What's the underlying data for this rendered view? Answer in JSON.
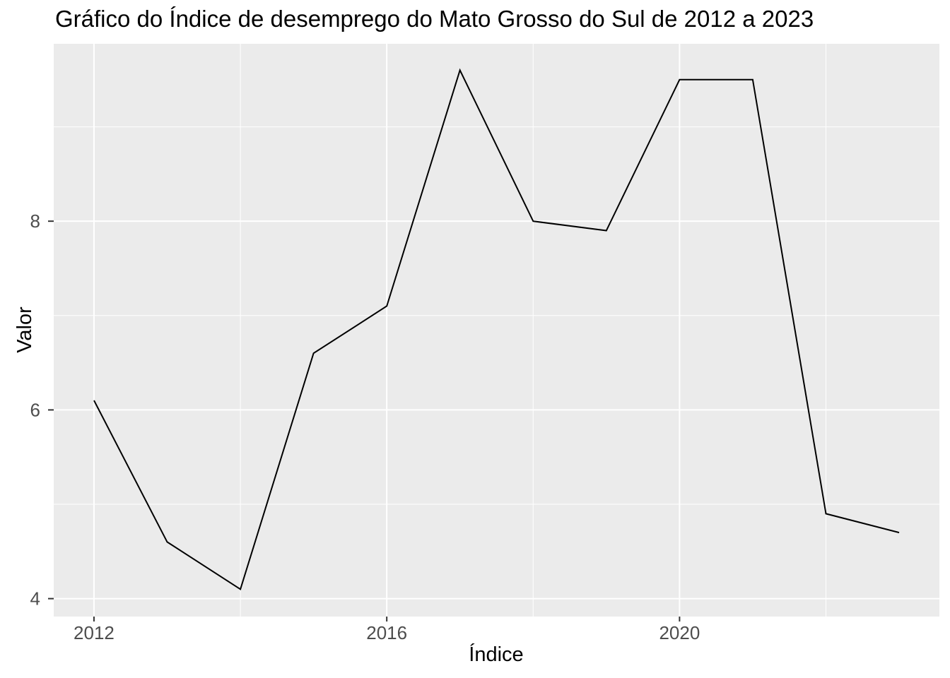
{
  "chart_data": {
    "type": "line",
    "title": "Gráfico do Índice de desemprego do Mato Grosso do Sul de 2012 a 2023",
    "xlabel": "Índice",
    "ylabel": "Valor",
    "x": [
      2012,
      2013,
      2014,
      2015,
      2016,
      2017,
      2018,
      2019,
      2020,
      2021,
      2022,
      2023
    ],
    "values": [
      6.1,
      4.6,
      4.1,
      6.6,
      7.1,
      9.6,
      8.0,
      7.9,
      9.5,
      9.5,
      4.9,
      4.7
    ],
    "x_ticks": [
      2012,
      2016,
      2020
    ],
    "y_ticks": [
      4,
      6,
      8
    ],
    "x_minor_gridlines": [
      2014,
      2018,
      2022
    ],
    "y_minor_gridlines": [
      5,
      7,
      9
    ],
    "xlim": [
      2011.45,
      2023.55
    ],
    "ylim": [
      3.81,
      9.88
    ],
    "grid": true,
    "legend": "none",
    "colors": {
      "line": "#000000",
      "panel_background": "#EBEBEB",
      "gridline_major": "#FFFFFF",
      "gridline_minor": "#FFFFFF",
      "tick_text": "#4D4D4D",
      "tick_mark": "#333333",
      "title_text": "#000000",
      "figure_background": "#FFFFFF"
    }
  }
}
